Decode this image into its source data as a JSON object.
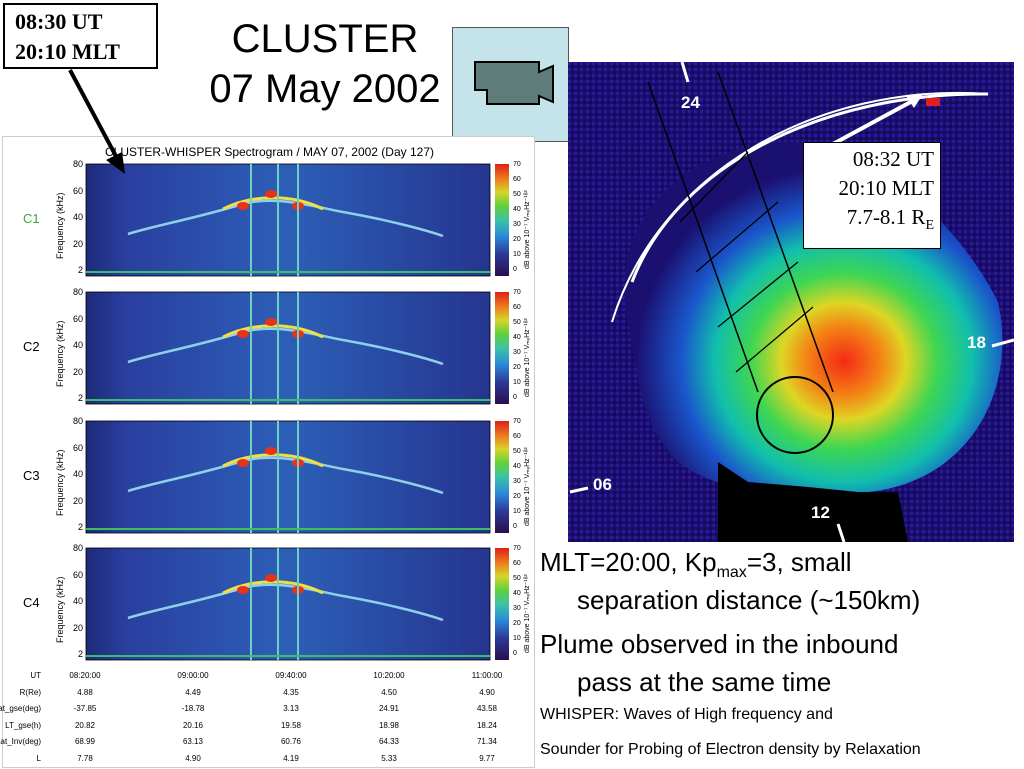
{
  "header": {
    "time_box": {
      "line1": "08:30 UT",
      "line2": "20:10 MLT"
    },
    "title_line1": "CLUSTER",
    "title_line2": "07 May 2002"
  },
  "spectrogram": {
    "title": "CLUSTER-WHISPER Spectrogram / MAY 07, 2002 (Day 127)",
    "ylabel": "Frequency (kHz)",
    "yticks": [
      "80",
      "60",
      "40",
      "20",
      "2"
    ],
    "colorbar_label": "dB above 10⁻⁷ VₘₑHz⁻¹ᵟ²",
    "colorbar_ticks": [
      "70",
      "60",
      "50",
      "40",
      "30",
      "20",
      "10",
      "0"
    ],
    "panels": [
      {
        "label": "C1",
        "color": "#3aa63a"
      },
      {
        "label": "C2",
        "color": "#000000"
      },
      {
        "label": "C3",
        "color": "#000000"
      },
      {
        "label": "C4",
        "color": "#000000"
      }
    ],
    "table": {
      "columns": [
        "08:20:00",
        "09:00:00",
        "09:40:00",
        "10:20:00",
        "11:00:00"
      ],
      "rows": [
        {
          "name": "UT",
          "values": [
            "08:20:00",
            "09:00:00",
            "09:40:00",
            "10:20:00",
            "11:00:00"
          ]
        },
        {
          "name": "R(Re)",
          "values": [
            "4.88",
            "4.49",
            "4.35",
            "4.50",
            "4.90"
          ]
        },
        {
          "name": "Lat_gse(deg)",
          "values": [
            "-37.85",
            "-18.78",
            "3.13",
            "24.91",
            "43.58"
          ]
        },
        {
          "name": "LT_gse(h)",
          "values": [
            "20.82",
            "20.16",
            "19.58",
            "18.98",
            "18.24"
          ]
        },
        {
          "name": "Lat_Inv(deg)",
          "values": [
            "68.99",
            "63.13",
            "60.76",
            "64.33",
            "71.34"
          ]
        },
        {
          "name": "L",
          "values": [
            "7.78",
            "4.90",
            "4.19",
            "5.33",
            "9.77"
          ]
        }
      ]
    }
  },
  "image": {
    "mlt_labels": {
      "top": "24",
      "right": "18",
      "left": "06",
      "bottom": "12"
    },
    "info_box": {
      "line1": "08:32 UT",
      "line2": "20:10 MLT",
      "line3_main": "7.7-8.1 R",
      "line3_sub": "E"
    }
  },
  "notes": {
    "line1_pre": "MLT=20:00, Kp",
    "line1_sub": "max",
    "line1_post": "=3, small",
    "line2": "separation distance (~150km)",
    "line3": "Plume observed in the inbound",
    "line4": "pass at the same time",
    "line5": "WHISPER: Waves of High frequency and",
    "line6": "Sounder for Probing of Electron density by Relaxation"
  },
  "icons": {
    "camera": "video-camera-icon"
  }
}
